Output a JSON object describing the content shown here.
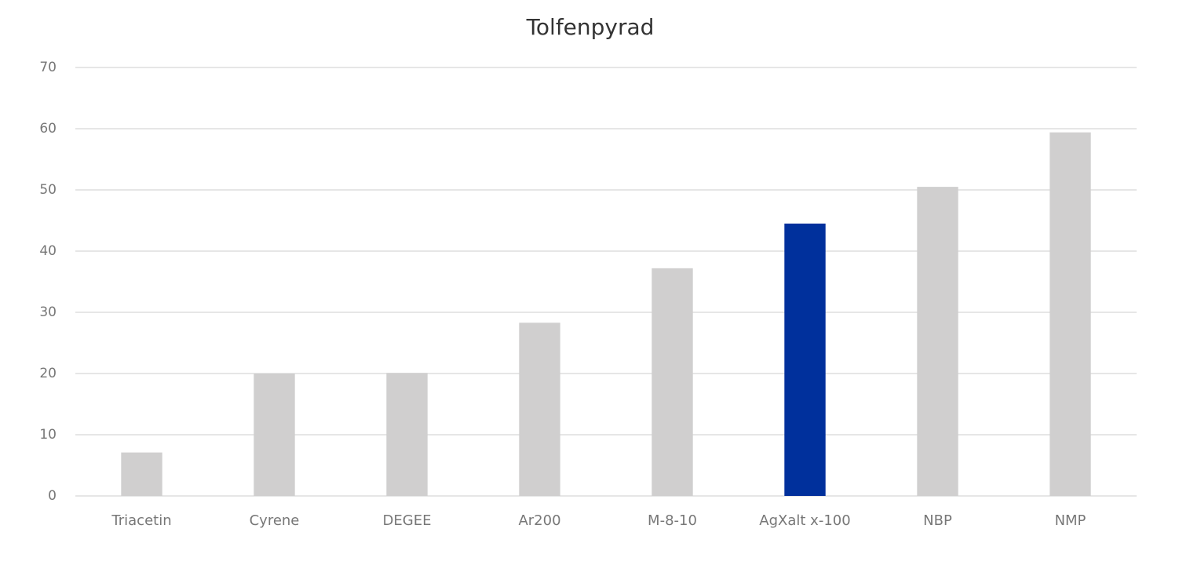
{
  "chart_data": {
    "type": "bar",
    "title": "Tolfenpyrad",
    "categories": [
      "Triacetin",
      "Cyrene",
      "DEGEE",
      "Ar200",
      "M-8-10",
      "AgXalt x-100",
      "NBP",
      "NMP"
    ],
    "values": [
      7.1,
      20.0,
      20.1,
      28.3,
      37.2,
      44.5,
      50.5,
      59.4
    ],
    "colors": [
      "#d0cfcf",
      "#d0cfcf",
      "#d0cfcf",
      "#d0cfcf",
      "#d0cfcf",
      "#00309c",
      "#d0cfcf",
      "#d0cfcf"
    ],
    "ylim": [
      0,
      70
    ],
    "yticks": [
      0,
      10,
      20,
      30,
      40,
      50,
      60,
      70
    ],
    "grid": true
  }
}
